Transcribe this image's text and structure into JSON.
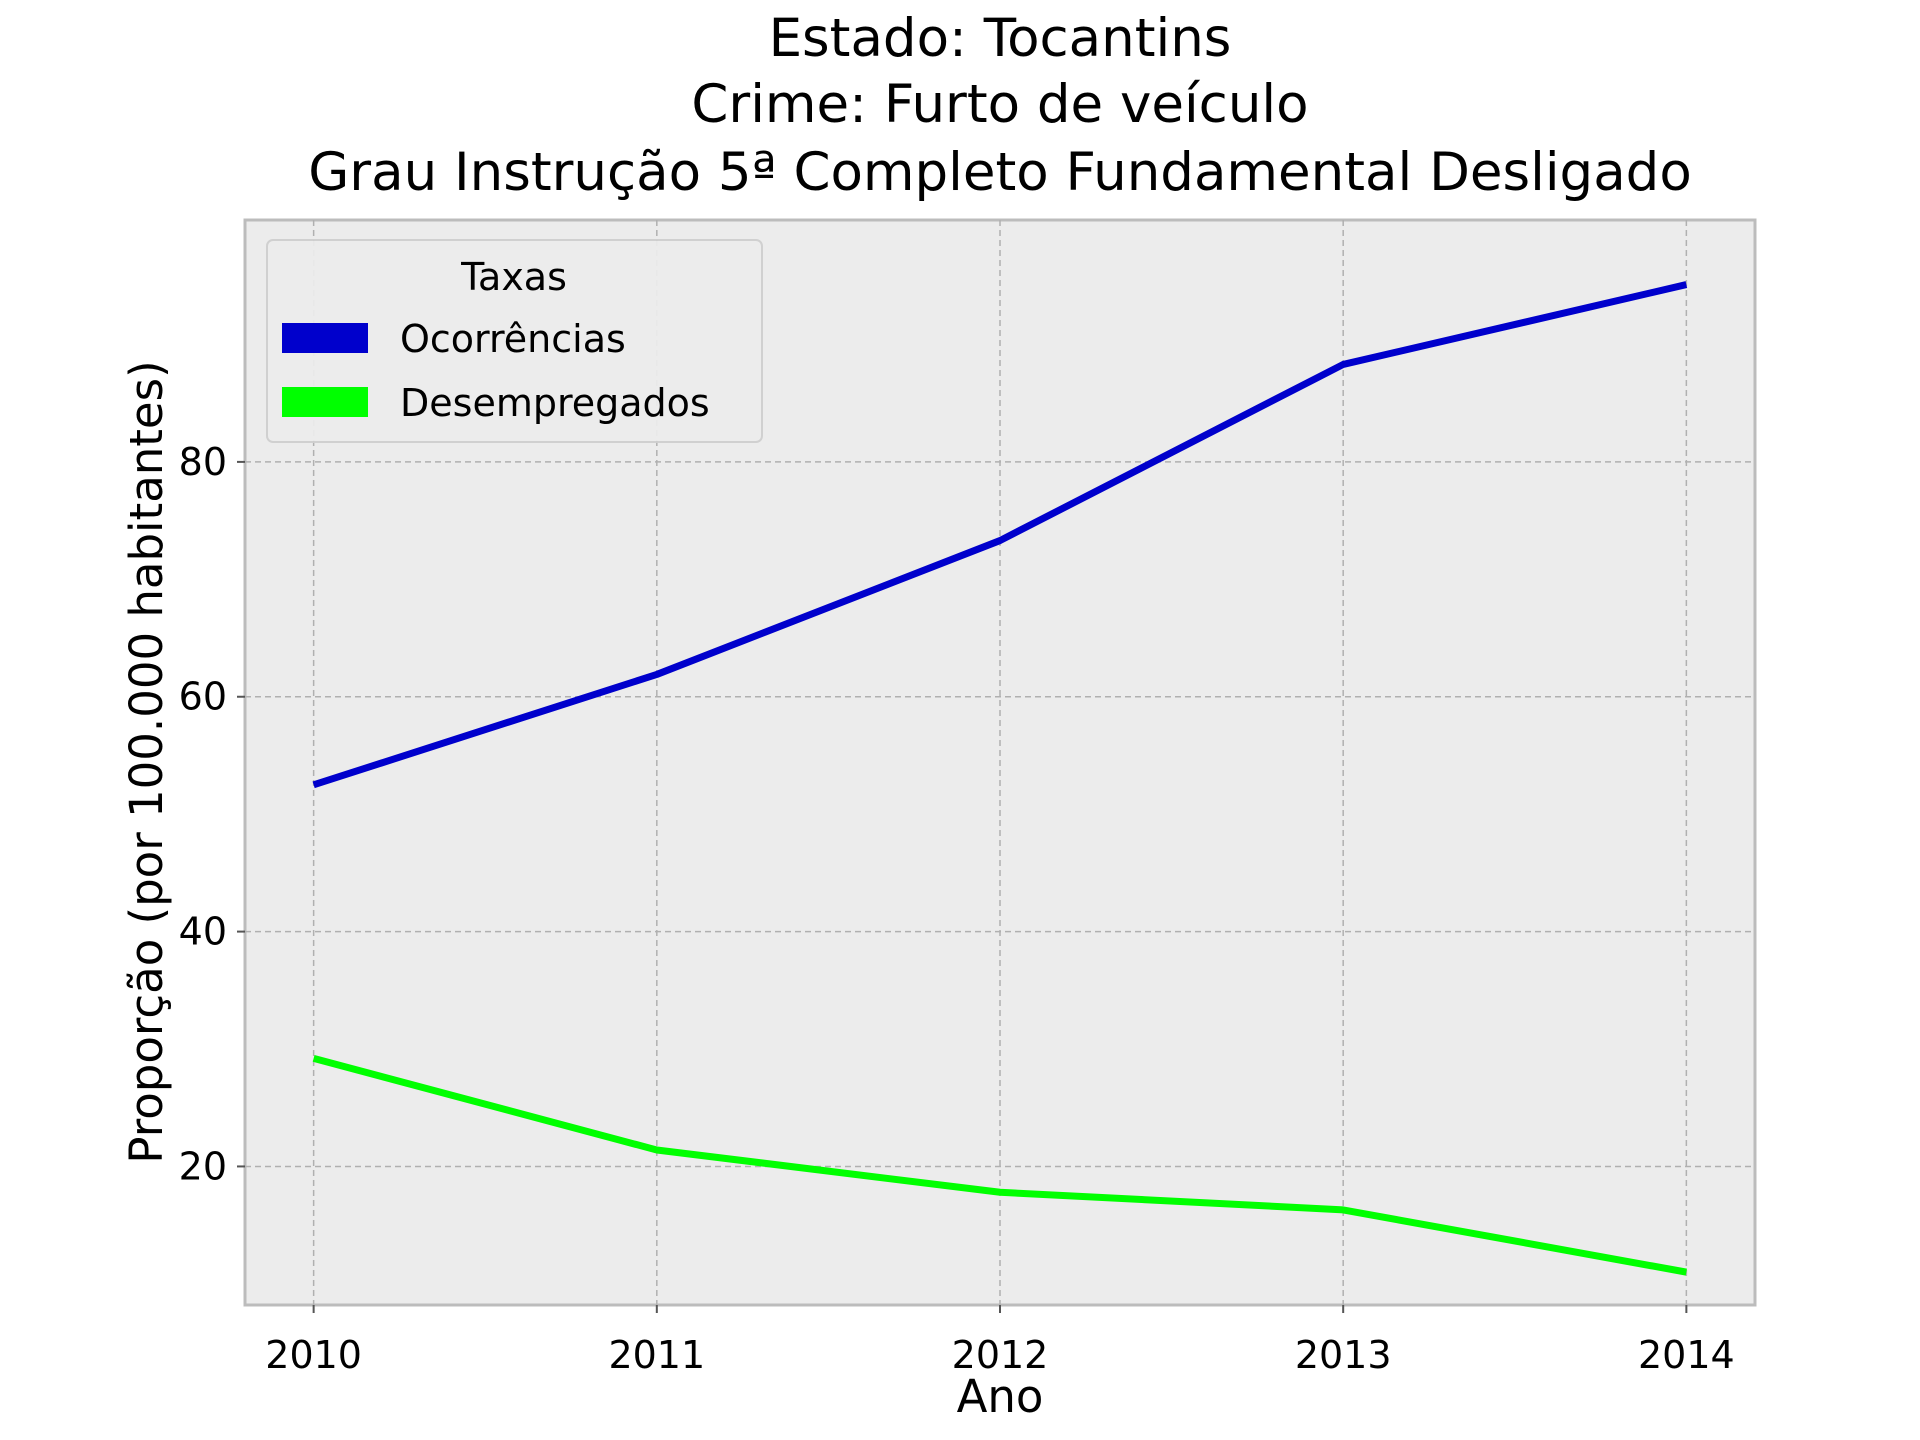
{
  "chart_data": {
    "type": "line",
    "title_lines": [
      "Estado: Tocantins",
      "Crime: Furto de veículo",
      "Grau Instrução  5ª Completo Fundamental   Desligado"
    ],
    "xlabel": "Ano",
    "ylabel": "Proporção (por 100.000 habitantes)",
    "x": [
      2010,
      2011,
      2012,
      2013,
      2014
    ],
    "xlim": [
      2009.8,
      2014.2
    ],
    "ylim": [
      8.2,
      100.6
    ],
    "x_ticks": [
      "2010",
      "2011",
      "2012",
      "2013",
      "2014"
    ],
    "y_ticks": [
      20,
      40,
      60,
      80
    ],
    "grid": true,
    "legend": {
      "title": "Taxas",
      "placement": "top-left"
    },
    "series": [
      {
        "name": "Ocorrências",
        "color": "#0000CC",
        "values": [
          52.5,
          61.9,
          73.3,
          88.3,
          95.1
        ]
      },
      {
        "name": "Desempregados",
        "color": "#00FF00",
        "values": [
          29.2,
          21.4,
          17.8,
          16.3,
          11.0
        ]
      }
    ]
  }
}
